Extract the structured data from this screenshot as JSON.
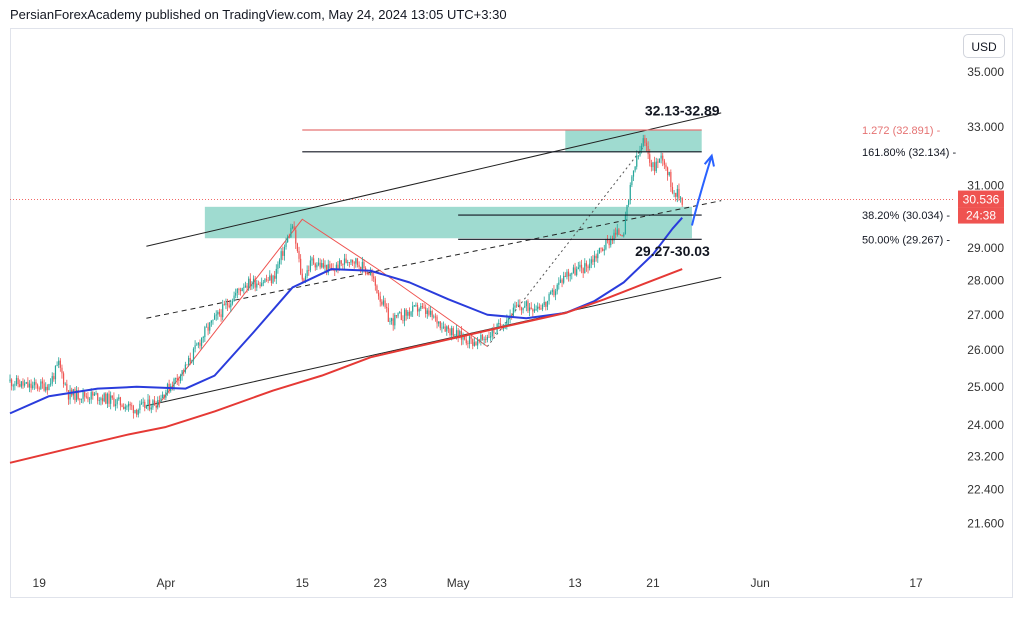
{
  "header": {
    "text": "PersianForexAcademy published on TradingView.com, May 24, 2024 13:05 UTC+3:30"
  },
  "currency_button": {
    "label": "USD"
  },
  "colors": {
    "up": "#26a69a",
    "down": "#ef5350",
    "ma_fast": "#2a3cdc",
    "ma_slow": "#e53935",
    "zone": "#7fcfc0",
    "fib_red": "#e57373",
    "text": "#131722",
    "axis_text": "#333333"
  },
  "chart_data": {
    "type": "candlestick",
    "yaxis": {
      "scale": "log",
      "range": [
        20.6,
        36.6
      ],
      "ticks": [
        "35.000",
        "33.000",
        "31.000",
        "29.000",
        "28.000",
        "27.000",
        "26.000",
        "25.000",
        "24.000",
        "23.200",
        "22.400",
        "21.600"
      ]
    },
    "xaxis": {
      "range": [
        "2024-03-16",
        "2024-06-21"
      ],
      "ticks": [
        {
          "date": "2024-03-19",
          "label": "19"
        },
        {
          "date": "2024-04-01",
          "label": "Apr"
        },
        {
          "date": "2024-04-15",
          "label": "15"
        },
        {
          "date": "2024-04-23",
          "label": "23"
        },
        {
          "date": "2024-05-01",
          "label": "May"
        },
        {
          "date": "2024-05-13",
          "label": "13"
        },
        {
          "date": "2024-05-21",
          "label": "21"
        },
        {
          "date": "2024-06-01",
          "label": "Jun"
        },
        {
          "date": "2024-06-17",
          "label": "17"
        }
      ]
    },
    "price_axis_badges": [
      {
        "value": 30.536,
        "label": "30.536"
      },
      {
        "label": "24:38"
      }
    ],
    "series": [
      {
        "kind": "candles",
        "interval_hours": 4,
        "path": [
          [
            "2024-03-16",
            25.15
          ],
          [
            "2024-03-18",
            25.0
          ],
          [
            "2024-03-20",
            25.05
          ],
          [
            "2024-03-21",
            25.6
          ],
          [
            "2024-03-22",
            24.8
          ],
          [
            "2024-03-25",
            24.75
          ],
          [
            "2024-03-27",
            24.6
          ],
          [
            "2024-03-29",
            24.4
          ],
          [
            "2024-03-31",
            24.6
          ],
          [
            "2024-04-03",
            25.5
          ],
          [
            "2024-04-05",
            26.5
          ],
          [
            "2024-04-07",
            27.2
          ],
          [
            "2024-04-09",
            27.9
          ],
          [
            "2024-04-12",
            28.05
          ],
          [
            "2024-04-14",
            29.7
          ],
          [
            "2024-04-15",
            28.0
          ],
          [
            "2024-04-16",
            28.6
          ],
          [
            "2024-04-18",
            28.3
          ],
          [
            "2024-04-20",
            28.7
          ],
          [
            "2024-04-22",
            28.2
          ],
          [
            "2024-04-23",
            27.5
          ],
          [
            "2024-04-24",
            26.8
          ],
          [
            "2024-04-27",
            27.2
          ],
          [
            "2024-04-29",
            26.8
          ],
          [
            "2024-05-01",
            26.4
          ],
          [
            "2024-05-03",
            26.2
          ],
          [
            "2024-05-05",
            26.6
          ],
          [
            "2024-05-07",
            27.2
          ],
          [
            "2024-05-10",
            27.3
          ],
          [
            "2024-05-12",
            28.2
          ],
          [
            "2024-05-14",
            28.4
          ],
          [
            "2024-05-17",
            29.4
          ],
          [
            "2024-05-18",
            29.55
          ],
          [
            "2024-05-19",
            31.5
          ],
          [
            "2024-05-20",
            32.5
          ],
          [
            "2024-05-21",
            31.6
          ],
          [
            "2024-05-22",
            32.0
          ],
          [
            "2024-05-23",
            30.9
          ],
          [
            "2024-05-24",
            30.536
          ]
        ]
      },
      {
        "kind": "moving_average",
        "color": "#2a3cdc",
        "points": [
          [
            "2024-03-16",
            24.3
          ],
          [
            "2024-03-20",
            24.75
          ],
          [
            "2024-03-25",
            24.95
          ],
          [
            "2024-03-29",
            25.0
          ],
          [
            "2024-04-03",
            24.95
          ],
          [
            "2024-04-06",
            25.3
          ],
          [
            "2024-04-10",
            26.5
          ],
          [
            "2024-04-14",
            27.8
          ],
          [
            "2024-04-18",
            28.35
          ],
          [
            "2024-04-22",
            28.3
          ],
          [
            "2024-04-26",
            27.95
          ],
          [
            "2024-04-30",
            27.45
          ],
          [
            "2024-05-04",
            27.0
          ],
          [
            "2024-05-08",
            26.9
          ],
          [
            "2024-05-12",
            27.05
          ],
          [
            "2024-05-15",
            27.4
          ],
          [
            "2024-05-18",
            27.95
          ],
          [
            "2024-05-21",
            28.8
          ],
          [
            "2024-05-23",
            29.6
          ],
          [
            "2024-05-24",
            29.95
          ]
        ]
      },
      {
        "kind": "moving_average",
        "color": "#e53935",
        "points": [
          [
            "2024-03-16",
            23.05
          ],
          [
            "2024-03-22",
            23.4
          ],
          [
            "2024-03-28",
            23.75
          ],
          [
            "2024-04-01",
            23.95
          ],
          [
            "2024-04-06",
            24.35
          ],
          [
            "2024-04-12",
            24.9
          ],
          [
            "2024-04-17",
            25.3
          ],
          [
            "2024-04-22",
            25.8
          ],
          [
            "2024-04-26",
            26.05
          ],
          [
            "2024-04-30",
            26.3
          ],
          [
            "2024-05-04",
            26.55
          ],
          [
            "2024-05-08",
            26.8
          ],
          [
            "2024-05-12",
            27.05
          ],
          [
            "2024-05-16",
            27.45
          ],
          [
            "2024-05-20",
            27.9
          ],
          [
            "2024-05-24",
            28.35
          ]
        ]
      }
    ],
    "channel_lines": [
      {
        "style": "solid",
        "from": [
          "2024-03-30",
          29.05
        ],
        "to": [
          "2024-05-28",
          33.5
        ]
      },
      {
        "style": "dashed",
        "from": [
          "2024-03-30",
          26.9
        ],
        "to": [
          "2024-05-28",
          30.5
        ]
      },
      {
        "style": "solid",
        "from": [
          "2024-03-30",
          24.5
        ],
        "to": [
          "2024-05-28",
          28.1
        ]
      }
    ],
    "zones": [
      {
        "from": [
          "2024-04-05",
          30.3
        ],
        "to": [
          "2024-05-25",
          29.3
        ]
      },
      {
        "from": [
          "2024-05-12",
          32.9
        ],
        "to": [
          "2024-05-26",
          32.12
        ]
      }
    ],
    "levels": [
      {
        "value": 32.891,
        "label": "1.272 (32.891)",
        "color": "#e57373",
        "from": "2024-04-15",
        "to": "2024-05-26"
      },
      {
        "value": 32.134,
        "label": "161.80% (32.134)",
        "color": "#131722",
        "from": "2024-04-15",
        "to": "2024-05-26"
      },
      {
        "value": 30.034,
        "label": "38.20% (30.034)",
        "color": "#131722",
        "from": "2024-05-01",
        "to": "2024-05-26"
      },
      {
        "value": 29.267,
        "label": "50.00% (29.267)",
        "color": "#131722",
        "from": "2024-05-01",
        "to": "2024-05-26"
      }
    ],
    "annotations": [
      {
        "text": "32.13-32.89",
        "at": [
          "2024-05-24",
          33.4
        ]
      },
      {
        "text": "29.27-30.03",
        "at": [
          "2024-05-23",
          28.75
        ]
      }
    ],
    "pattern_lines": [
      {
        "color": "#ef5350",
        "points": [
          [
            "2024-03-31",
            24.45
          ],
          [
            "2024-04-15",
            29.9
          ],
          [
            "2024-04-23",
            28.3
          ],
          [
            "2024-05-04",
            26.1
          ]
        ]
      },
      {
        "color": "#555555",
        "style": "dotted",
        "points": [
          [
            "2024-05-04",
            26.1
          ],
          [
            "2024-05-20",
            32.3
          ]
        ]
      }
    ],
    "arrow": {
      "from": [
        "2024-05-25",
        29.7
      ],
      "to": [
        "2024-05-26",
        32.0
      ],
      "color": "#2962ff"
    }
  }
}
